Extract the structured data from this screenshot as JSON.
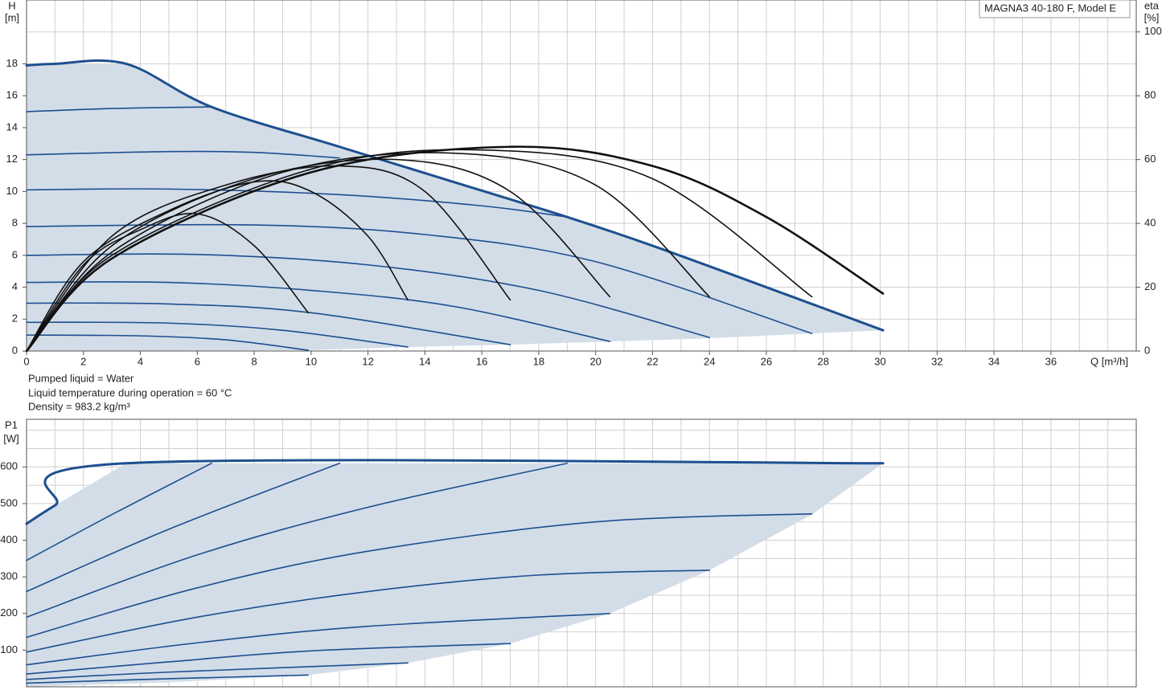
{
  "chart_data": [
    {
      "type": "line",
      "title": "MAGNA3 40-180 F, Model E",
      "ylabel": "H",
      "yunit": "[m]",
      "y2label": "eta",
      "y2unit": "[%]",
      "xlabel": "Q [m³/h]",
      "notes": [
        "Pumped liquid = Water",
        "Liquid temperature during operation = 60 °C",
        "Density = 983.2 kg/m³"
      ],
      "xlim": [
        0,
        39
      ],
      "xticks": [
        0,
        2,
        4,
        6,
        8,
        10,
        12,
        14,
        16,
        18,
        20,
        22,
        24,
        26,
        28,
        30,
        32,
        34,
        36
      ],
      "xgrid": [
        0,
        1,
        2,
        3,
        4,
        5,
        6,
        7,
        8,
        9,
        10,
        11,
        12,
        13,
        14,
        15,
        16,
        17,
        18,
        19,
        20,
        21,
        22,
        23,
        24,
        25,
        26,
        27,
        28,
        29,
        30,
        31,
        32,
        33,
        34,
        35,
        36,
        37,
        38,
        39
      ],
      "ylim": [
        0,
        22
      ],
      "yticks": [
        0,
        2,
        4,
        6,
        8,
        10,
        12,
        14,
        16,
        18
      ],
      "ygrid": [
        0,
        2,
        4,
        6,
        8,
        10,
        12,
        14,
        16,
        18,
        20,
        22
      ],
      "y2lim": [
        0,
        110
      ],
      "y2ticks": [
        0,
        20,
        40,
        60,
        80,
        100
      ],
      "grid": true,
      "area": {
        "color": "#d3dde8",
        "x": [
          0,
          1,
          3.5,
          6.5,
          11,
          15,
          19,
          22,
          26,
          30.1,
          27.6,
          24,
          20.5,
          17,
          13.4,
          9.9,
          0
        ],
        "values": [
          17.9,
          18,
          18,
          15.3,
          12.8,
          10.6,
          8.4,
          6.6,
          4,
          1.3,
          1.1,
          0.8,
          0.6,
          0.4,
          0.25,
          0.05,
          0
        ]
      },
      "series": [
        {
          "color": "#1d4f8f",
          "width": 3,
          "x": [
            0,
            1,
            3.5,
            6.5,
            11,
            15,
            19,
            22,
            26,
            30.1
          ],
          "values": [
            17.9,
            18,
            18,
            15.3,
            12.8,
            10.6,
            8.4,
            6.6,
            4,
            1.3
          ]
        },
        {
          "color": "#1d4f8f",
          "width": 1.6,
          "x": [
            0,
            3,
            6.5
          ],
          "values": [
            15,
            15.2,
            15.3
          ]
        },
        {
          "color": "#1d4f8f",
          "width": 1.6,
          "x": [
            0,
            5,
            8,
            11
          ],
          "values": [
            12.3,
            12.5,
            12.45,
            12.1
          ]
        },
        {
          "color": "#1d4f8f",
          "width": 1.6,
          "x": [
            0,
            5,
            11,
            16,
            19
          ],
          "values": [
            10.1,
            10.15,
            9.8,
            9.1,
            8.4
          ]
        },
        {
          "color": "#1d4f8f",
          "width": 1.6,
          "x": [
            0,
            8,
            14,
            20,
            27.6
          ],
          "values": [
            7.8,
            7.9,
            7.3,
            5.6,
            1.1
          ]
        },
        {
          "color": "#1d4f8f",
          "width": 1.6,
          "x": [
            0,
            6,
            12,
            18,
            24
          ],
          "values": [
            6,
            6.05,
            5.4,
            3.8,
            0.85
          ]
        },
        {
          "color": "#1d4f8f",
          "width": 1.6,
          "x": [
            0,
            5,
            10,
            15,
            20.5
          ],
          "values": [
            4.3,
            4.3,
            3.8,
            2.8,
            0.6
          ]
        },
        {
          "color": "#1d4f8f",
          "width": 1.6,
          "x": [
            0,
            5,
            10,
            17
          ],
          "values": [
            3,
            2.95,
            2.4,
            0.4
          ]
        },
        {
          "color": "#1d4f8f",
          "width": 1.6,
          "x": [
            0,
            5,
            9,
            13.4
          ],
          "values": [
            1.8,
            1.75,
            1.3,
            0.25
          ]
        },
        {
          "color": "#1d4f8f",
          "width": 1.6,
          "x": [
            0,
            4,
            7,
            9.9
          ],
          "values": [
            1,
            0.95,
            0.7,
            0.05
          ]
        },
        {
          "color": "#111111",
          "width": 1.6,
          "axis": "y2",
          "x": [
            0,
            2,
            4,
            6,
            8,
            9.9
          ],
          "values": [
            0,
            27,
            38,
            43,
            33,
            12
          ]
        },
        {
          "color": "#111111",
          "width": 1.6,
          "axis": "y2",
          "x": [
            0,
            2,
            5,
            8,
            10,
            12,
            13.4
          ],
          "values": [
            0,
            28,
            44,
            53,
            50,
            36,
            16
          ]
        },
        {
          "color": "#111111",
          "width": 1.6,
          "axis": "y2",
          "x": [
            0,
            3,
            7,
            11,
            14,
            17
          ],
          "values": [
            0,
            36,
            52,
            58,
            50,
            16
          ]
        },
        {
          "color": "#111111",
          "width": 1.6,
          "axis": "y2",
          "x": [
            0,
            3,
            8,
            13,
            17,
            20.5
          ],
          "values": [
            0,
            33,
            54,
            60,
            50,
            17
          ]
        },
        {
          "color": "#111111",
          "width": 1.6,
          "axis": "y2",
          "x": [
            0,
            3,
            9,
            15,
            20,
            24
          ],
          "values": [
            0,
            31,
            56,
            62,
            52,
            17
          ]
        },
        {
          "color": "#111111",
          "width": 1.6,
          "axis": "y2",
          "x": [
            0,
            3,
            10,
            16,
            22,
            27.6
          ],
          "values": [
            0,
            30,
            57,
            63,
            54,
            17
          ]
        },
        {
          "color": "#111111",
          "width": 2.6,
          "axis": "y2",
          "x": [
            0,
            3,
            10,
            17,
            22,
            26,
            30.1
          ],
          "values": [
            0,
            29,
            56,
            64,
            58,
            42,
            18
          ]
        }
      ]
    },
    {
      "type": "line",
      "ylabel": "P1",
      "yunit": "[W]",
      "xlim": [
        0,
        39
      ],
      "xgrid": [
        0,
        1,
        2,
        3,
        4,
        5,
        6,
        7,
        8,
        9,
        10,
        11,
        12,
        13,
        14,
        15,
        16,
        17,
        18,
        19,
        20,
        21,
        22,
        23,
        24,
        25,
        26,
        27,
        28,
        29,
        30,
        31,
        32,
        33,
        34,
        35,
        36,
        37,
        38,
        39
      ],
      "ylim": [
        0,
        730
      ],
      "yticks": [
        100,
        200,
        300,
        400,
        500,
        600
      ],
      "ygrid": [
        100,
        150,
        200,
        250,
        300,
        350,
        400,
        450,
        500,
        550,
        600,
        650,
        700
      ],
      "grid": true,
      "area": {
        "color": "#d3dde8",
        "x": [
          0,
          1,
          3.5,
          30.1,
          27.6,
          24,
          20.5,
          17,
          13.4,
          9.9,
          5,
          0
        ],
        "values": [
          445,
          495,
          610,
          610,
          470,
          318,
          200,
          118,
          65,
          32,
          12,
          0
        ]
      },
      "series": [
        {
          "color": "#1d4f8f",
          "width": 3,
          "x": [
            0,
            1,
            3.5,
            30.1
          ],
          "values": [
            445,
            495,
            610,
            610
          ]
        },
        {
          "color": "#1d4f8f",
          "width": 1.6,
          "x": [
            0,
            3,
            6.5
          ],
          "values": [
            345,
            470,
            610
          ]
        },
        {
          "color": "#1d4f8f",
          "width": 1.6,
          "x": [
            0,
            5,
            11
          ],
          "values": [
            260,
            430,
            610
          ]
        },
        {
          "color": "#1d4f8f",
          "width": 1.6,
          "x": [
            0,
            6,
            12,
            19
          ],
          "values": [
            190,
            360,
            490,
            610
          ]
        },
        {
          "color": "#1d4f8f",
          "width": 1.6,
          "x": [
            0,
            6,
            12,
            20,
            27.6
          ],
          "values": [
            135,
            270,
            370,
            450,
            472
          ]
        },
        {
          "color": "#1d4f8f",
          "width": 1.6,
          "x": [
            0,
            6,
            12,
            18,
            24
          ],
          "values": [
            95,
            190,
            260,
            305,
            318
          ]
        },
        {
          "color": "#1d4f8f",
          "width": 1.6,
          "x": [
            0,
            6,
            12,
            20.5
          ],
          "values": [
            60,
            120,
            165,
            200
          ]
        },
        {
          "color": "#1d4f8f",
          "width": 1.6,
          "x": [
            0,
            5,
            10,
            17
          ],
          "values": [
            35,
            68,
            98,
            118
          ]
        },
        {
          "color": "#1d4f8f",
          "width": 1.6,
          "x": [
            0,
            5,
            13.4
          ],
          "values": [
            20,
            40,
            65
          ]
        },
        {
          "color": "#1d4f8f",
          "width": 1.6,
          "x": [
            0,
            5,
            9.9
          ],
          "values": [
            10,
            22,
            32
          ]
        }
      ]
    }
  ]
}
